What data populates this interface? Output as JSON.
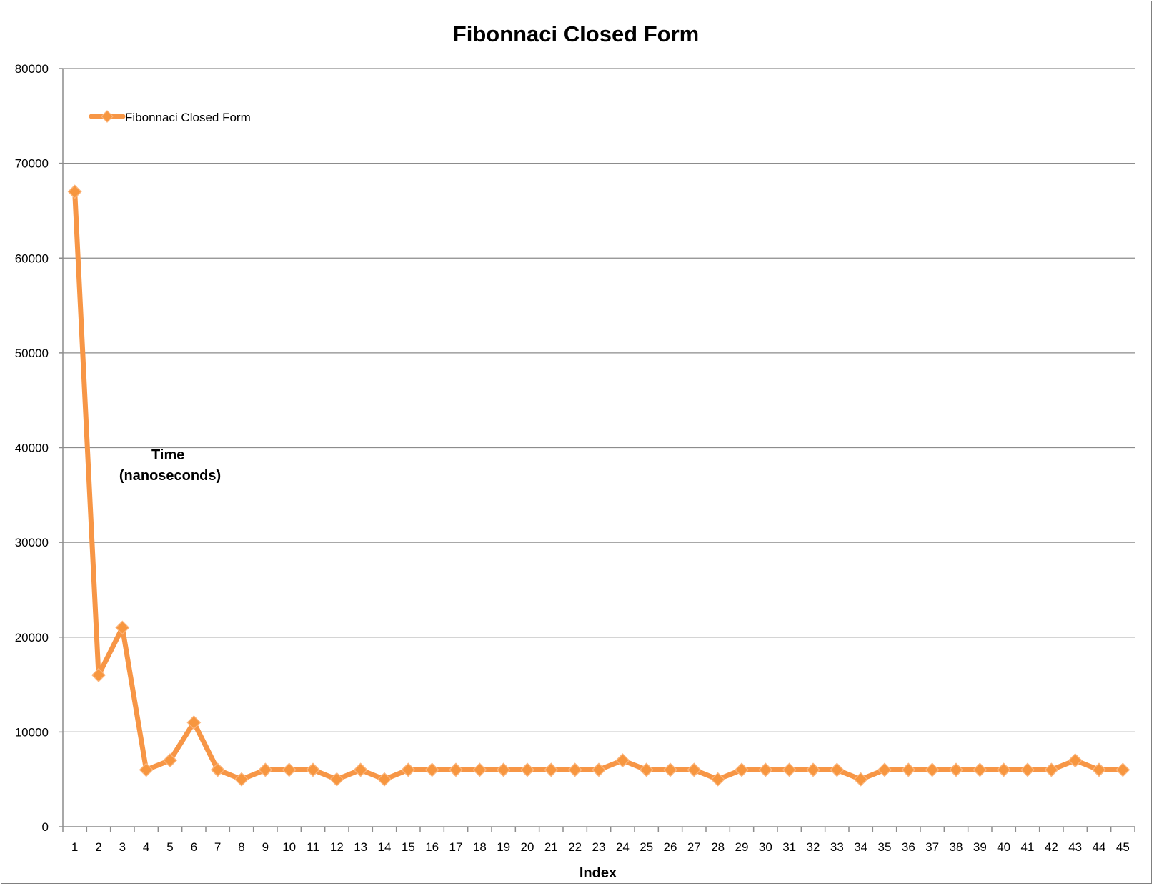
{
  "chart_data": {
    "type": "line",
    "title": "Fibonnaci Closed Form",
    "xlabel": "Index",
    "ylabel_lines": [
      "Time",
      "(nanoseconds)"
    ],
    "ylim": [
      0,
      80000
    ],
    "yticks": [
      0,
      10000,
      20000,
      30000,
      40000,
      50000,
      60000,
      70000,
      80000
    ],
    "grid": true,
    "legend_position": "top-left",
    "x": [
      1,
      2,
      3,
      4,
      5,
      6,
      7,
      8,
      9,
      10,
      11,
      12,
      13,
      14,
      15,
      16,
      17,
      18,
      19,
      20,
      21,
      22,
      23,
      24,
      25,
      26,
      27,
      28,
      29,
      30,
      31,
      32,
      33,
      34,
      35,
      36,
      37,
      38,
      39,
      40,
      41,
      42,
      43,
      44,
      45
    ],
    "series": [
      {
        "name": "Fibonnaci Closed Form",
        "color": "#f79646",
        "marker": "diamond",
        "values": [
          67000,
          16000,
          21000,
          6000,
          7000,
          11000,
          6000,
          5000,
          6000,
          6000,
          6000,
          5000,
          6000,
          5000,
          6000,
          6000,
          6000,
          6000,
          6000,
          6000,
          6000,
          6000,
          6000,
          7000,
          6000,
          6000,
          6000,
          5000,
          6000,
          6000,
          6000,
          6000,
          6000,
          5000,
          6000,
          6000,
          6000,
          6000,
          6000,
          6000,
          6000,
          6000,
          7000,
          6000,
          6000
        ]
      }
    ]
  }
}
